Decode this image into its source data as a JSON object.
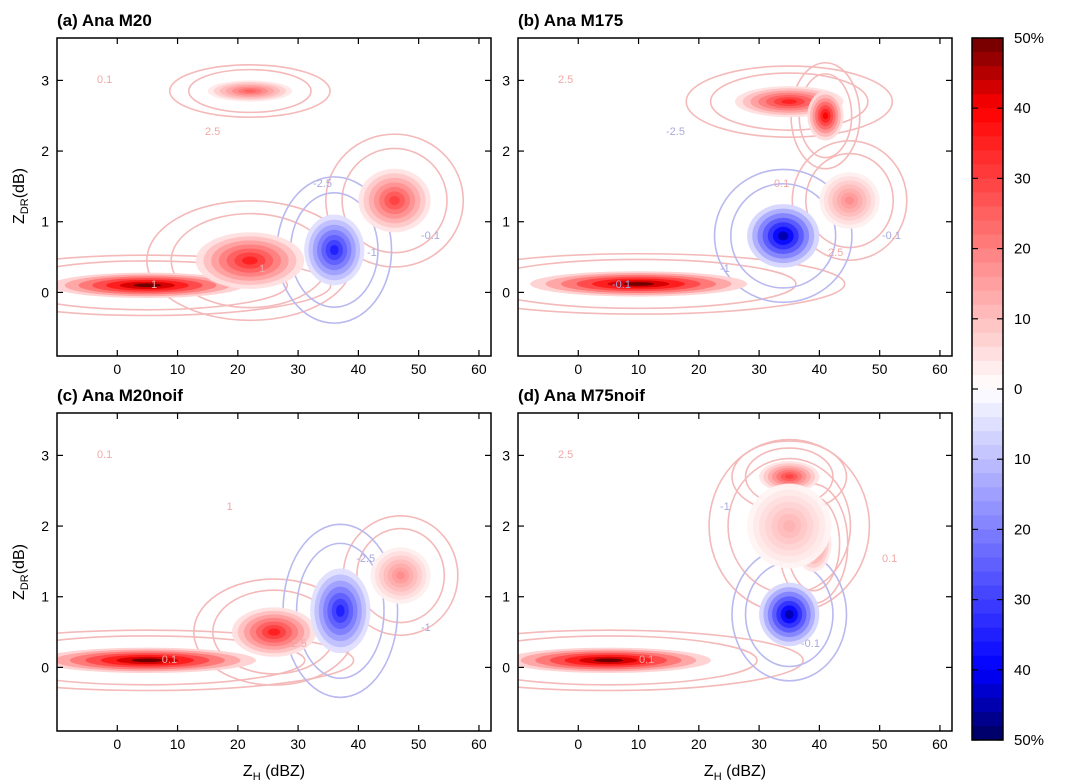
{
  "chart_data": [
    {
      "type": "heatmap",
      "title": "(a) Ana M20",
      "xlabel": "",
      "ylabel": "Z_DR(dB)",
      "xlim": [
        -10,
        62
      ],
      "ylim": [
        -0.9,
        3.6
      ],
      "xticks": [
        "0",
        "10",
        "20",
        "30",
        "40",
        "50",
        "60"
      ],
      "yticks": [
        "0",
        "1",
        "2",
        "3"
      ],
      "contour_labels": [
        "0.1",
        "1",
        "2.5",
        "1",
        "-2.5",
        "-1",
        "-0.1"
      ],
      "features": [
        {
          "kind": "red",
          "x": 5,
          "y": 0.1,
          "rx": 16,
          "ry": 0.18,
          "intensity": 50
        },
        {
          "kind": "red",
          "x": 22,
          "y": 0.45,
          "rx": 9,
          "ry": 0.4,
          "intensity": 35
        },
        {
          "kind": "red",
          "x": 46,
          "y": 1.3,
          "rx": 6,
          "ry": 0.45,
          "intensity": 30
        },
        {
          "kind": "red",
          "x": 22,
          "y": 2.85,
          "rx": 7,
          "ry": 0.15,
          "intensity": 25
        },
        {
          "kind": "blue",
          "x": 36,
          "y": 0.6,
          "rx": 5,
          "ry": 0.5,
          "intensity": -35
        }
      ]
    },
    {
      "type": "heatmap",
      "title": "(b) Ana M175",
      "xlabel": "",
      "ylabel": "",
      "xlim": [
        -10,
        62
      ],
      "ylim": [
        -0.9,
        3.6
      ],
      "xticks": [
        "0",
        "10",
        "20",
        "30",
        "40",
        "50",
        "60"
      ],
      "yticks": [
        "0",
        "1",
        "2",
        "3"
      ],
      "contour_labels": [
        "2.5",
        "-0.1",
        "-2.5",
        "-1",
        "0.1",
        "2.5",
        "-0.1"
      ],
      "features": [
        {
          "kind": "red",
          "x": 10,
          "y": 0.12,
          "rx": 18,
          "ry": 0.18,
          "intensity": 50
        },
        {
          "kind": "red",
          "x": 35,
          "y": 2.7,
          "rx": 9,
          "ry": 0.22,
          "intensity": 35
        },
        {
          "kind": "red",
          "x": 41,
          "y": 2.5,
          "rx": 3,
          "ry": 0.35,
          "intensity": 40
        },
        {
          "kind": "red",
          "x": 45,
          "y": 1.3,
          "rx": 5,
          "ry": 0.4,
          "intensity": 18
        },
        {
          "kind": "blue",
          "x": 34,
          "y": 0.8,
          "rx": 6,
          "ry": 0.45,
          "intensity": -45
        }
      ]
    },
    {
      "type": "heatmap",
      "title": "(c) Ana M20noif",
      "xlabel": "Z_H (dBZ)",
      "ylabel": "Z_DR(dB)",
      "xlim": [
        -10,
        62
      ],
      "ylim": [
        -0.9,
        3.6
      ],
      "xticks": [
        "0",
        "10",
        "20",
        "30",
        "40",
        "50",
        "60"
      ],
      "yticks": [
        "0",
        "1",
        "2",
        "3"
      ],
      "contour_labels": [
        "0.1",
        "0.1",
        "1",
        "2.5",
        "-2.5",
        "-1"
      ],
      "features": [
        {
          "kind": "red",
          "x": 5,
          "y": 0.1,
          "rx": 18,
          "ry": 0.18,
          "intensity": 50
        },
        {
          "kind": "red",
          "x": 26,
          "y": 0.5,
          "rx": 7,
          "ry": 0.35,
          "intensity": 35
        },
        {
          "kind": "red",
          "x": 47,
          "y": 1.3,
          "rx": 5,
          "ry": 0.4,
          "intensity": 18
        },
        {
          "kind": "blue",
          "x": 37,
          "y": 0.8,
          "rx": 5,
          "ry": 0.6,
          "intensity": -35
        }
      ]
    },
    {
      "type": "heatmap",
      "title": "(d) Ana M75noif",
      "xlabel": "Z_H (dBZ)",
      "ylabel": "",
      "xlim": [
        -10,
        62
      ],
      "ylim": [
        -0.9,
        3.6
      ],
      "xticks": [
        "0",
        "10",
        "20",
        "30",
        "40",
        "50",
        "60"
      ],
      "yticks": [
        "0",
        "1",
        "2",
        "3"
      ],
      "contour_labels": [
        "2.5",
        "0.1",
        "-1",
        "-0.1",
        "0.1"
      ],
      "features": [
        {
          "kind": "red",
          "x": 5,
          "y": 0.1,
          "rx": 17,
          "ry": 0.18,
          "intensity": 50
        },
        {
          "kind": "red",
          "x": 35,
          "y": 2.7,
          "rx": 5,
          "ry": 0.22,
          "intensity": 30
        },
        {
          "kind": "red",
          "x": 39,
          "y": 1.75,
          "rx": 3,
          "ry": 0.4,
          "intensity": 25
        },
        {
          "kind": "red",
          "x": 35,
          "y": 2.0,
          "rx": 7,
          "ry": 0.6,
          "intensity": 12
        },
        {
          "kind": "blue",
          "x": 35,
          "y": 0.75,
          "rx": 5,
          "ry": 0.45,
          "intensity": -45
        }
      ]
    }
  ],
  "colorbar": {
    "min": -50,
    "max": 50,
    "labels": [
      {
        "value": 50,
        "text": "50%"
      },
      {
        "value": 40,
        "text": "40"
      },
      {
        "value": 30,
        "text": "30"
      },
      {
        "value": 20,
        "text": "20"
      },
      {
        "value": 10,
        "text": "10"
      },
      {
        "value": 0,
        "text": "0"
      },
      {
        "value": -10,
        "text": "10"
      },
      {
        "value": -20,
        "text": "20"
      },
      {
        "value": -30,
        "text": "30"
      },
      {
        "value": -40,
        "text": "40"
      },
      {
        "value": -50,
        "text": "50%"
      }
    ],
    "colors": {
      "max": "#6b0000",
      "high": "#ff0000",
      "zero": "#ffffff",
      "low": "#0000ff",
      "min": "#00005c"
    }
  }
}
